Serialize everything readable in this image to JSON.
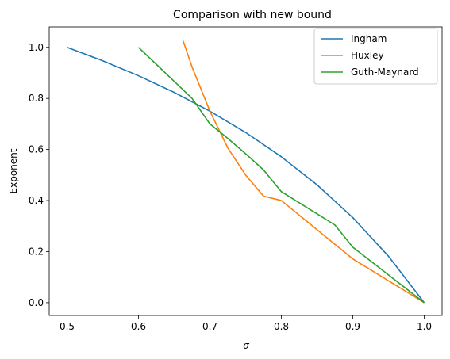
{
  "chart_data": {
    "type": "line",
    "title": "Comparison with new bound",
    "xlabel": "σ",
    "ylabel": "Exponent",
    "xlim": [
      0.475,
      1.025
    ],
    "ylim": [
      -0.05,
      1.08
    ],
    "xticks": [
      0.5,
      0.6,
      0.7,
      0.8,
      0.9,
      1.0
    ],
    "xtick_labels": [
      "0.5",
      "0.6",
      "0.7",
      "0.8",
      "0.9",
      "1.0"
    ],
    "yticks": [
      0.0,
      0.2,
      0.4,
      0.6,
      0.8,
      1.0
    ],
    "ytick_labels": [
      "0.0",
      "0.2",
      "0.4",
      "0.6",
      "0.8",
      "1.0"
    ],
    "grid": false,
    "legend_position": "top-right",
    "series": [
      {
        "name": "Ingham",
        "color": "#1f77b4",
        "x": [
          0.5,
          0.55,
          0.6,
          0.65,
          0.7,
          0.75,
          0.8,
          0.85,
          0.9,
          0.95,
          1.0
        ],
        "y": [
          1.0,
          0.9474,
          0.8889,
          0.8235,
          0.75,
          0.6667,
          0.5714,
          0.4615,
          0.3333,
          0.1818,
          0.0
        ]
      },
      {
        "name": "Huxley",
        "color": "#ff7f0e",
        "x": [
          0.6625,
          0.675,
          0.7,
          0.725,
          0.75,
          0.775,
          0.8,
          0.825,
          0.85,
          0.875,
          0.9,
          0.925,
          0.95,
          0.975,
          1.0
        ],
        "y": [
          1.0253,
          0.9231,
          0.75,
          0.6061,
          0.5,
          0.4174,
          0.4,
          0.3429,
          0.2857,
          0.2286,
          0.1714,
          0.1286,
          0.0857,
          0.0429,
          0.0
        ]
      },
      {
        "name": "Guth-Maynard",
        "color": "#2ca02c",
        "x": [
          0.6,
          0.625,
          0.65,
          0.675,
          0.7,
          0.725,
          0.75,
          0.775,
          0.8,
          0.825,
          0.85,
          0.875,
          0.9,
          0.925,
          0.95,
          0.975,
          1.0
        ],
        "y": [
          1.0,
          0.9333,
          0.8667,
          0.8,
          0.7,
          0.6435,
          0.5833,
          0.52,
          0.4348,
          0.3913,
          0.3478,
          0.3043,
          0.2174,
          0.163,
          0.1087,
          0.0543,
          0.0
        ]
      }
    ]
  }
}
